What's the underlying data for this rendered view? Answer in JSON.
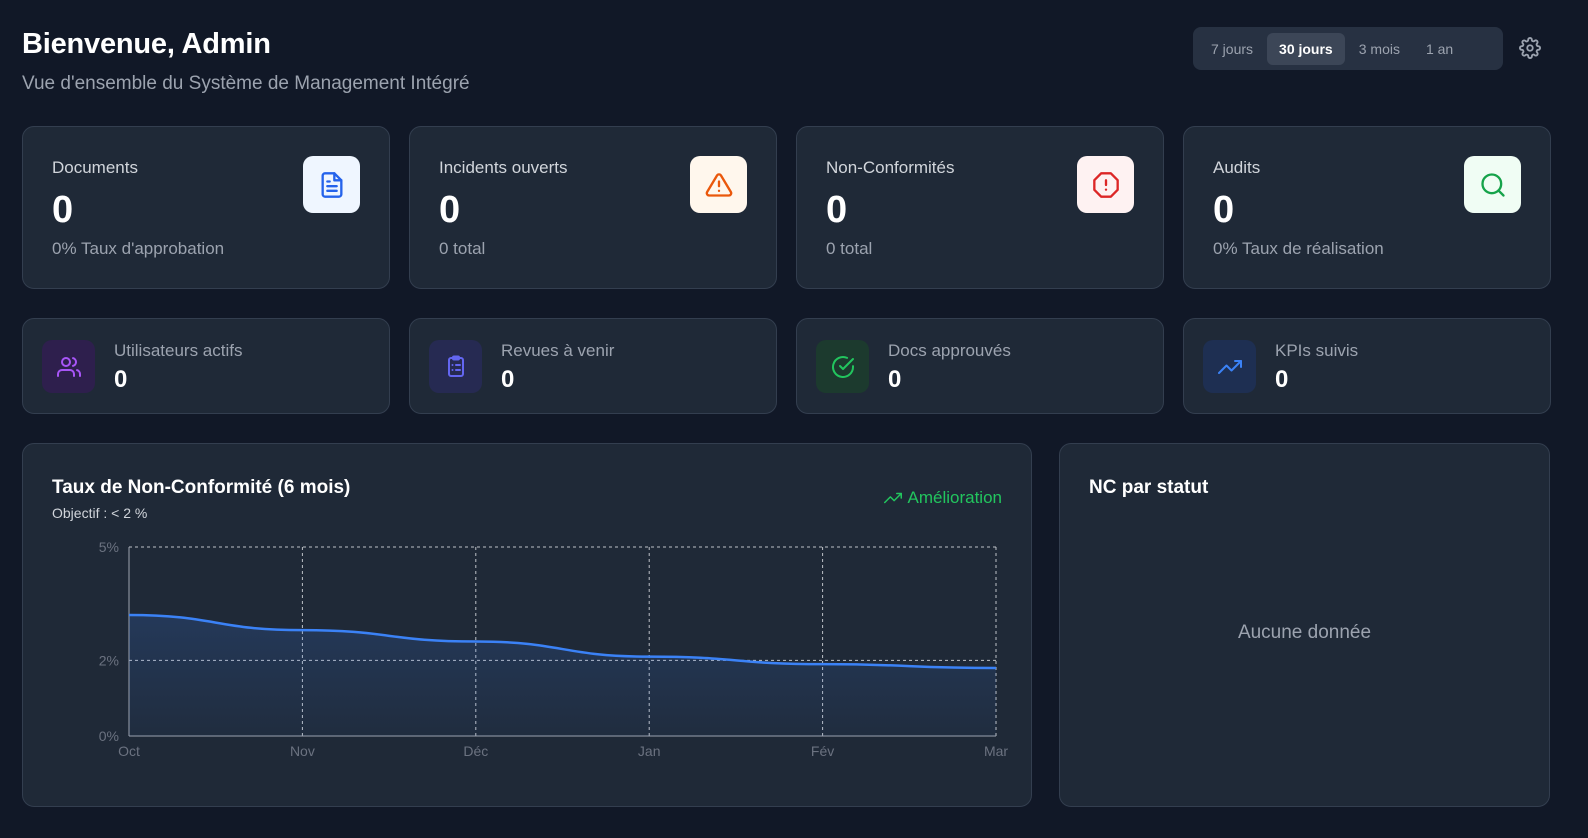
{
  "header": {
    "title": "Bienvenue, Admin",
    "subtitle": "Vue d'ensemble du Système de Management Intégré"
  },
  "period_selector": {
    "options": [
      "7 jours",
      "30 jours",
      "3 mois",
      "1 an"
    ],
    "selected": "30 jours"
  },
  "stats": [
    {
      "label": "Documents",
      "value": "0",
      "sub": "0% Taux d'approbation",
      "icon": "document-icon",
      "color": "#2563eb",
      "bg": "#eff6ff"
    },
    {
      "label": "Incidents ouverts",
      "value": "0",
      "sub": "0 total",
      "icon": "warning-triangle-icon",
      "color": "#ea580c",
      "bg": "#fff7ed"
    },
    {
      "label": "Non-Conformités",
      "value": "0",
      "sub": "0 total",
      "icon": "alert-octagon-icon",
      "color": "#dc2626",
      "bg": "#fef2f2"
    },
    {
      "label": "Audits",
      "value": "0",
      "sub": "0% Taux de réalisation",
      "icon": "search-icon",
      "color": "#16a34a",
      "bg": "#f0fdf4"
    }
  ],
  "mini_stats": [
    {
      "label": "Utilisateurs actifs",
      "value": "0",
      "icon": "users-icon",
      "color": "#a855f7",
      "bg": "#2e1f4d"
    },
    {
      "label": "Revues à venir",
      "value": "0",
      "icon": "clipboard-list-icon",
      "color": "#6366f1",
      "bg": "#262a52"
    },
    {
      "label": "Docs approuvés",
      "value": "0",
      "icon": "check-circle-icon",
      "color": "#22c55e",
      "bg": "#1c3a2e"
    },
    {
      "label": "KPIs suivis",
      "value": "0",
      "icon": "trending-up-icon",
      "color": "#3b82f6",
      "bg": "#1e2f52"
    }
  ],
  "nc_chart": {
    "title": "Taux de Non-Conformité (6 mois)",
    "subtitle": "Objectif : < 2 %",
    "trend_label": "Amélioration",
    "trend_color": "#22c55e"
  },
  "chart_data": {
    "type": "area",
    "title": "Taux de Non-Conformité (6 mois)",
    "categories": [
      "Oct",
      "Nov",
      "Déc",
      "Jan",
      "Fév",
      "Mar"
    ],
    "series": [
      {
        "values": [
          3.2,
          2.8,
          2.5,
          2.1,
          1.9,
          1.8
        ]
      }
    ],
    "y_ticks": [
      "0%",
      "2%",
      "5%"
    ],
    "y_tick_values": [
      0,
      2,
      5
    ],
    "ylim": [
      0,
      5
    ],
    "grid": true,
    "line_color": "#3b82f6"
  },
  "status_panel": {
    "title": "NC par statut",
    "empty_text": "Aucune donnée"
  }
}
